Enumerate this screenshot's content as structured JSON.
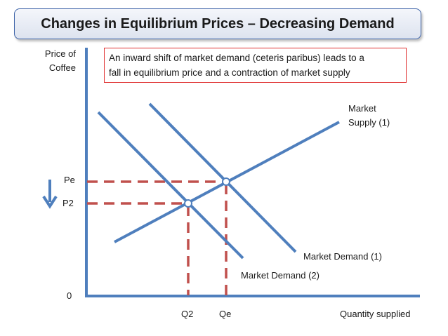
{
  "title": "Changes in Equilibrium Prices – Decreasing Demand",
  "note": {
    "line1": "An inward shift of market demand (ceteris paribus) leads to a",
    "line2": "fall in equilibrium price and a contraction of market supply"
  },
  "axes": {
    "y_label_line1": "Price of",
    "y_label_line2": "Coffee",
    "x_label": "Quantity supplied",
    "origin": "0"
  },
  "prices": {
    "pe": "Pe",
    "p2": "P2"
  },
  "quantities": {
    "q2": "Q2",
    "qe": "Qe"
  },
  "curves": {
    "supply_line1": "Market",
    "supply_line2": "Supply (1)",
    "demand1": "Market Demand (1)",
    "demand2": "Market Demand (2)"
  },
  "colors": {
    "curve": "#4f7fbd",
    "dashed_guides": "#c0504d",
    "note_border": "#e03030",
    "title_border": "#3d63a8"
  }
}
